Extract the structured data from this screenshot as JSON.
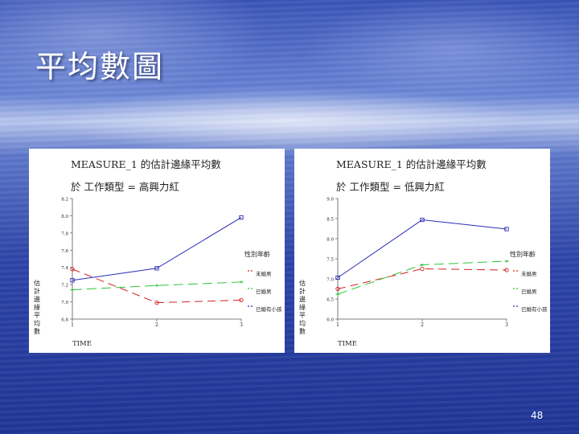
{
  "slide": {
    "title": "平均數圖",
    "page_number": "48"
  },
  "chart_data": [
    {
      "type": "line",
      "title": "MEASURE_1 的估計邊緣平均數",
      "subtitle": "於 工作類型 = 高興力紅",
      "xlabel": "TIME",
      "ylabel": "估計邊緣平均數",
      "x": [
        "1",
        "2",
        "3"
      ],
      "ylim": [
        6.8,
        8.2
      ],
      "yticks": [
        "6.8",
        "7.0",
        "7.2",
        "7.4",
        "7.6",
        "7.8",
        "8.0",
        "8.2"
      ],
      "legend_title": "性別年齡",
      "legend_position": "right",
      "series": [
        {
          "name": "未婚男",
          "color": "#d42020",
          "dash": "10,6",
          "marker": "circle",
          "values": [
            7.38,
            6.99,
            7.02
          ]
        },
        {
          "name": "已婚男",
          "color": "#2ec43a",
          "dash": "12,6",
          "marker": "diamond",
          "values": [
            7.14,
            7.19,
            7.23
          ]
        },
        {
          "name": "已婚有小孩",
          "color": "#2a2ab8",
          "dash": "",
          "marker": "square",
          "values": [
            7.25,
            7.39,
            7.98
          ]
        }
      ]
    },
    {
      "type": "line",
      "title": "MEASURE_1 的估計邊緣平均數",
      "subtitle": "於 工作類型 = 低興力紅",
      "xlabel": "TIME",
      "ylabel": "估計邊緣平均數",
      "x": [
        "1",
        "2",
        "3"
      ],
      "ylim": [
        6.0,
        9.0
      ],
      "yticks": [
        "6.0",
        "6.5",
        "7.0",
        "7.5",
        "8.0",
        "8.5",
        "9.0"
      ],
      "legend_title": "性別年齡",
      "legend_position": "right",
      "series": [
        {
          "name": "未婚男",
          "color": "#d42020",
          "dash": "10,6",
          "marker": "circle",
          "values": [
            6.75,
            7.25,
            7.22
          ]
        },
        {
          "name": "已婚男",
          "color": "#2ec43a",
          "dash": "12,6",
          "marker": "diamond",
          "values": [
            6.62,
            7.35,
            7.44
          ]
        },
        {
          "name": "已婚有小孩",
          "color": "#2a2ab8",
          "dash": "",
          "marker": "square",
          "values": [
            7.03,
            8.47,
            8.24
          ]
        }
      ]
    }
  ]
}
